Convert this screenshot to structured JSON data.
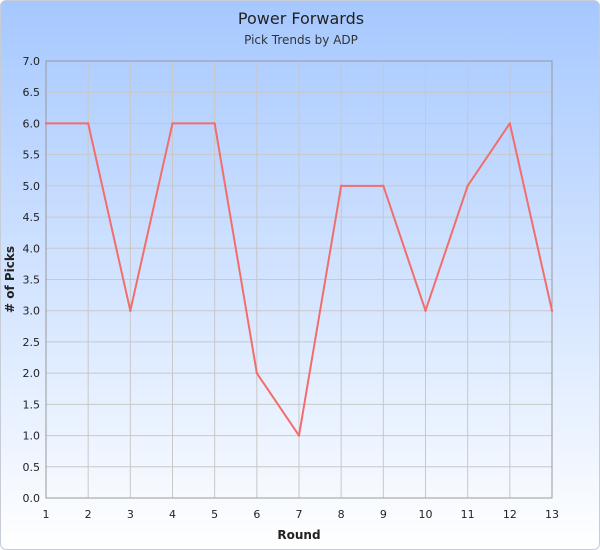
{
  "chart_data": {
    "type": "line",
    "title": "Power Forwards",
    "subtitle": "Pick Trends by ADP",
    "xlabel": "Round",
    "ylabel": "# of Picks",
    "x": [
      1,
      2,
      3,
      4,
      5,
      6,
      7,
      8,
      9,
      10,
      11,
      12,
      13
    ],
    "y": [
      6,
      6,
      3,
      6,
      6,
      2,
      1,
      5,
      5,
      3,
      5,
      6,
      3
    ],
    "xlim": [
      1,
      13
    ],
    "ylim": [
      0,
      7
    ],
    "yticks": [
      "0.0",
      "0.5",
      "1.0",
      "1.5",
      "2.0",
      "2.5",
      "3.0",
      "3.5",
      "4.0",
      "4.5",
      "5.0",
      "5.5",
      "6.0",
      "6.5",
      "7.0"
    ],
    "xticks": [
      "1",
      "2",
      "3",
      "4",
      "5",
      "6",
      "7",
      "8",
      "9",
      "10",
      "11",
      "12",
      "13"
    ],
    "grid": true,
    "line_color": "#f26d6d"
  }
}
